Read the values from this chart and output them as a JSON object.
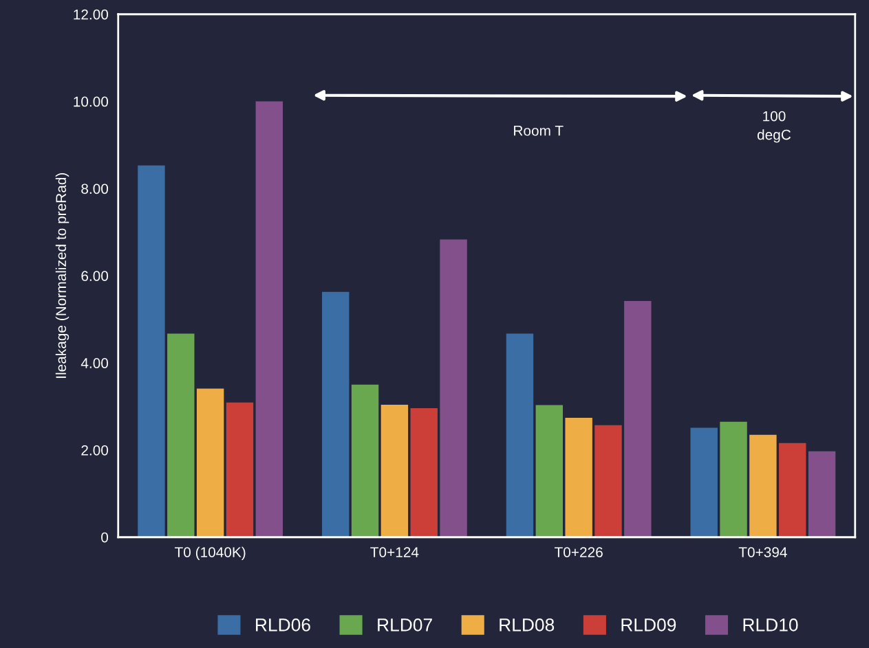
{
  "chart_data": {
    "type": "bar",
    "ylabel": "Ileakage (Normalized to preRad)",
    "categories": [
      "T0 (1040K)",
      "T0+124",
      "T0+226",
      "T0+394"
    ],
    "series": [
      {
        "name": "RLD06",
        "color": "#3a6ea5",
        "values": [
          8.53,
          5.63,
          4.67,
          2.51
        ]
      },
      {
        "name": "RLD07",
        "color": "#6aa84f",
        "values": [
          4.67,
          3.5,
          3.03,
          2.65
        ]
      },
      {
        "name": "RLD08",
        "color": "#efad45",
        "values": [
          3.41,
          3.04,
          2.74,
          2.35
        ]
      },
      {
        "name": "RLD09",
        "color": "#cc3f38",
        "values": [
          3.09,
          2.96,
          2.57,
          2.16
        ]
      },
      {
        "name": "RLD10",
        "color": "#84508c",
        "values": [
          10.0,
          6.83,
          5.42,
          1.97
        ]
      }
    ],
    "ylim": [
      0,
      12
    ],
    "yticks": [
      {
        "value": 0,
        "label": "0"
      },
      {
        "value": 2,
        "label": "2.00"
      },
      {
        "value": 4,
        "label": "4.00"
      },
      {
        "value": 6,
        "label": "6.00"
      },
      {
        "value": 8,
        "label": "8.00"
      },
      {
        "value": 10,
        "label": "10.00"
      },
      {
        "value": 12,
        "label": "12.00"
      }
    ],
    "annotations": [
      "Room T",
      "100\ndegC"
    ],
    "grid": false,
    "legend": "bottom"
  }
}
